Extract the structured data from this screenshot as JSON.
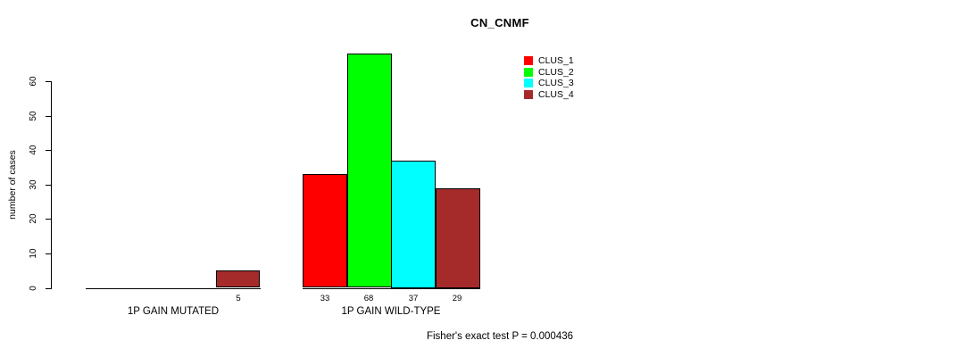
{
  "chart_data": {
    "type": "bar",
    "title": "CN_CNMF",
    "ylabel": "number of cases",
    "ylim": [
      0,
      60
    ],
    "yticks": [
      0,
      10,
      20,
      30,
      40,
      50,
      60
    ],
    "grid": false,
    "legend_position": "top-right",
    "categories": [
      "1P GAIN MUTATED",
      "1P GAIN WILD-TYPE"
    ],
    "series": [
      {
        "name": "CLUS_1",
        "color": "#FF0000",
        "values": [
          0,
          33
        ]
      },
      {
        "name": "CLUS_2",
        "color": "#00FF00",
        "values": [
          0,
          68
        ]
      },
      {
        "name": "CLUS_3",
        "color": "#00FFFF",
        "values": [
          0,
          37
        ]
      },
      {
        "name": "CLUS_4",
        "color": "#A52A2A",
        "values": [
          5,
          29
        ]
      }
    ],
    "bar_outline_color": "#000000",
    "axis_color": "#000000"
  },
  "footer": {
    "text": "Fisher's exact test P = 0.000436"
  }
}
